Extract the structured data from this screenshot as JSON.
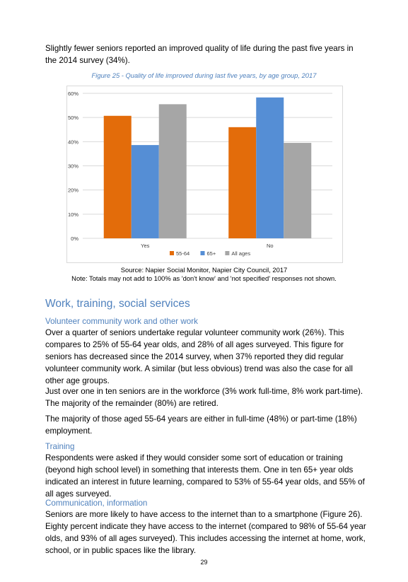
{
  "intro_text": "Slightly fewer seniors reported an improved quality of life during the past five years in the 2014 survey (34%).",
  "figure_caption": "Figure 25 - Quality of life improved during last five years, by age group, 2017",
  "chart_data": {
    "type": "bar",
    "categories": [
      "Yes",
      "No"
    ],
    "series": [
      {
        "name": "55-64",
        "values": [
          50.7,
          46.0
        ],
        "color": "#e36c0a"
      },
      {
        "name": "65+",
        "values": [
          38.6,
          58.3
        ],
        "color": "#558ed5"
      },
      {
        "name": "All ages",
        "values": [
          55.5,
          39.5
        ],
        "color": "#a6a6a6"
      }
    ],
    "ylim": [
      0,
      60
    ],
    "yticks": [
      "0%",
      "10%",
      "20%",
      "30%",
      "40%",
      "50%",
      "60%"
    ],
    "ytick_values": [
      0,
      10,
      20,
      30,
      40,
      50,
      60
    ],
    "grid": true,
    "legend_position": "bottom"
  },
  "source_line": "Source: Napier Social Monitor, Napier City Council, 2017",
  "note_line": "Note: Totals may not add to 100% as 'don't know' and 'not specified' responses not shown.",
  "section_heading": "Work, training, social services",
  "volunteer": {
    "heading": "Volunteer community work and other work",
    "p1": "Over a quarter of seniors undertake regular volunteer community work (26%). This compares to 25% of 55-64 year olds, and 28% of all ages surveyed. This figure for seniors has decreased since the 2014 survey, when 37% reported they did regular volunteer community work. A similar (but less obvious) trend was also the case for all other age groups.",
    "p2": "Just over one in ten seniors are in the workforce (3% work full-time, 8% work part-time). The majority of the remainder (80%) are retired.",
    "p3": "The majority of those aged 55-64 years are either in full-time (48%) or part-time (18%) employment."
  },
  "training": {
    "heading": "Training",
    "p1": "Respondents were asked if they would consider some sort of education or training (beyond high school level) in something that interests them. One in ten 65+ year olds indicated an interest in future learning, compared to 53% of 55-64 year olds, and 55% of all ages surveyed."
  },
  "communication": {
    "heading": "Communication, information",
    "p1": "Seniors are more likely to have access to the internet than to a smartphone (Figure 26). Eighty percent indicate they have access to the internet (compared to 98% of 55-64 year olds, and 93% of all ages surveyed). This includes accessing the internet at home, work, school, or in public spaces like the library."
  },
  "page_number": "29"
}
